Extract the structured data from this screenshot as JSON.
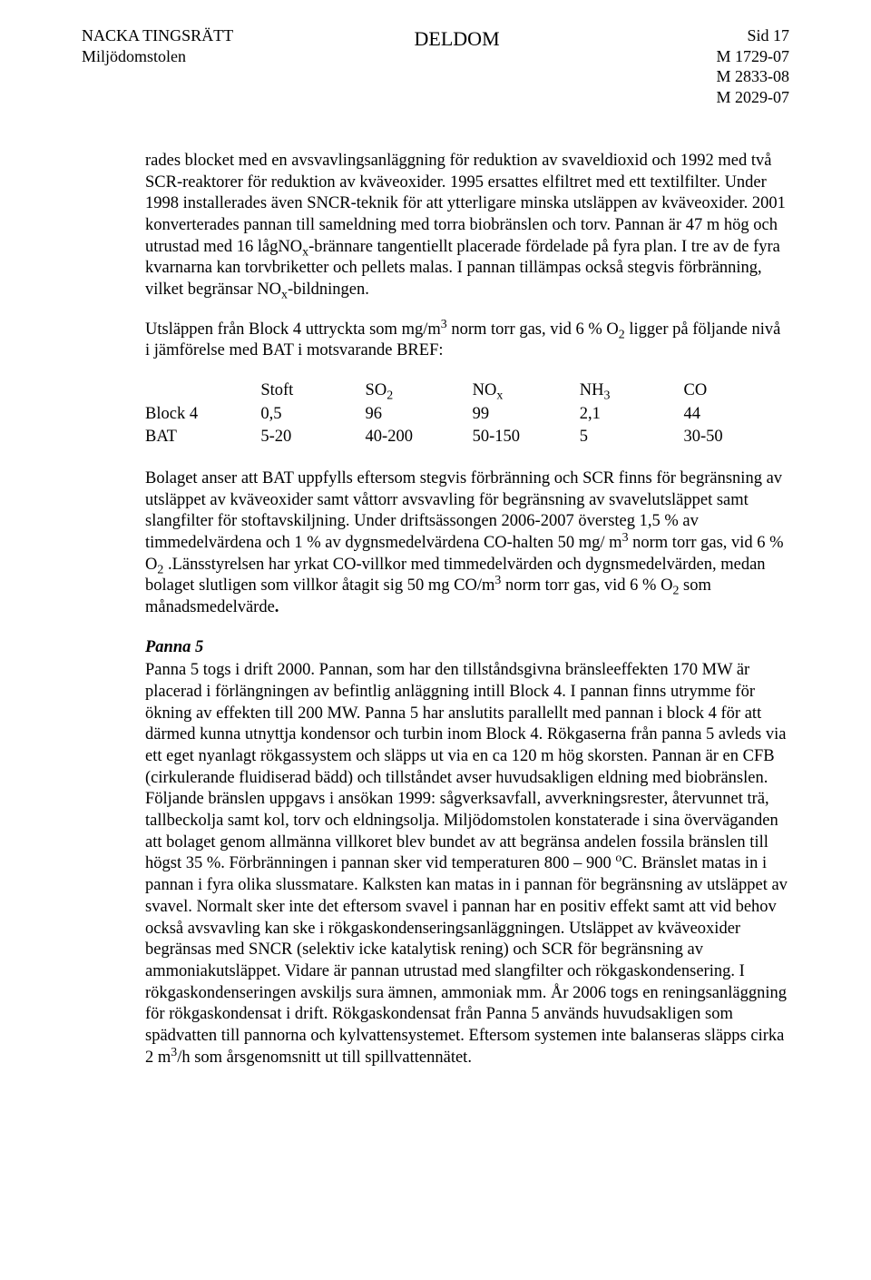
{
  "header": {
    "court_name": "NACKA TINGSRÄTT",
    "court_sub": "Miljödomstolen",
    "doc_type": "DELDOM",
    "page_label": "Sid 17",
    "case_1": "M 1729-07",
    "case_2": "M 2833-08",
    "case_3": "M 2029-07"
  },
  "para1_a": "rades blocket med en avsvavlingsanläggning för reduktion av svaveldioxid och 1992 med två SCR-reaktorer för reduktion av kväveoxider. 1995 ersattes elfiltret med ett textilfilter. Under 1998 installerades även SNCR-teknik för att ytterligare minska utsläppen av kväveoxider. 2001 konverterades pannan till sameldning med torra biobränslen och torv. Pannan är 47 m hög och utrustad med 16 lågNO",
  "para1_b": "-brännare tangentiellt placerade fördelade på fyra plan. I tre av de fyra kvarnarna kan torvbriketter och pellets malas. I pannan tillämpas också stegvis förbränning, vilket begränsar NO",
  "para1_c": "-bildningen.",
  "para2_a": "Utsläppen från Block 4 uttryckta som mg/m",
  "para2_b": " norm torr gas, vid 6 % O",
  "para2_c": " ligger på följande nivå i jämförelse med BAT i motsvarande BREF:",
  "table": {
    "h0": "",
    "h1": "Stoft",
    "h2_a": "SO",
    "h3_a": "NO",
    "h4_a": "NH",
    "h5": "CO",
    "r1c0": "Block 4",
    "r1c1": "0,5",
    "r1c2": "96",
    "r1c3": "99",
    "r1c4": "2,1",
    "r1c5": "44",
    "r2c0": "BAT",
    "r2c1": "5-20",
    "r2c2": "40-200",
    "r2c3": "50-150",
    "r2c4": "5",
    "r2c5": "30-50"
  },
  "para3_a": "Bolaget anser att BAT uppfylls eftersom stegvis förbränning och SCR finns för begränsning av utsläppet av kväveoxider samt våttorr avsvavling för begränsning av svavelutsläppet samt slangfilter för stoftavskiljning. Under driftsässongen 2006-2007 översteg 1,5 % av timmedelvärdena och 1 % av dygnsmedelvärdena CO-halten 50 mg/ m",
  "para3_b": " norm torr gas, vid 6 % O",
  "para3_c": " .Länsstyrelsen har yrkat CO-villkor med timmedelvärden och dygnsmedelvärden, medan bolaget slutligen som villkor åtagit sig 50 mg CO/m",
  "para3_d": " norm torr gas, vid 6 % O",
  "para3_e": " som månadsmedelvärde",
  "para3_f": ".",
  "section_title": "Panna 5",
  "para4_a": "Panna 5 togs i drift 2000. Pannan, som har den tillståndsgivna bränsleeffekten 170 MW är placerad i förlängningen av befintlig anläggning intill Block 4. I pannan finns utrymme för ökning av effekten till 200 MW. Panna 5 har anslutits parallellt med pannan i block 4 för att därmed kunna utnyttja kondensor och turbin inom Block 4. Rökgaserna från panna 5 avleds via ett eget nyanlagt rökgassystem och släpps ut via en ca 120 m hög skorsten. Pannan är en CFB (cirkulerande fluidiserad bädd) och tillståndet avser huvudsakligen eldning med biobränslen. Följande bränslen uppgavs i ansökan 1999: sågverksavfall, avverkningsrester, återvunnet trä, tallbeckolja samt kol, torv och eldningsolja. Miljödomstolen konstaterade i sina överväganden att bolaget genom allmänna villkoret blev bundet av att begränsa andelen fossila bränslen till högst 35 %. Förbränningen i pannan sker vid temperaturen 800 – 900 ",
  "para4_b": "C. Bränslet matas in i pannan i fyra olika slussmatare. Kalksten kan matas in i pannan för begränsning av utsläppet av svavel. Normalt sker inte det eftersom svavel i pannan har en positiv effekt samt att vid behov också avsvavling kan ske i rökgaskondenseringsanläggningen. Utsläppet av kväveoxider begränsas med SNCR (selektiv icke katalytisk rening) och SCR för begränsning av ammoniakutsläppet. Vidare är pannan utrustad med slangfilter och rökgaskondensering. I rökgaskondenseringen avskiljs sura ämnen, ammoniak mm. År 2006 togs en reningsanläggning för rökgaskondensat i drift. Rökgaskondensat från Panna 5 används huvudsakligen som spädvatten till pannorna och kylvattensystemet. Eftersom systemen inte balanseras släpps cirka 2 m",
  "para4_c": "/h som årsgenomsnitt ut till spillvattennätet.",
  "sub_x": "x",
  "sub_2": "2",
  "sub_3": "3",
  "sup_3": "3",
  "sup_o": "o"
}
